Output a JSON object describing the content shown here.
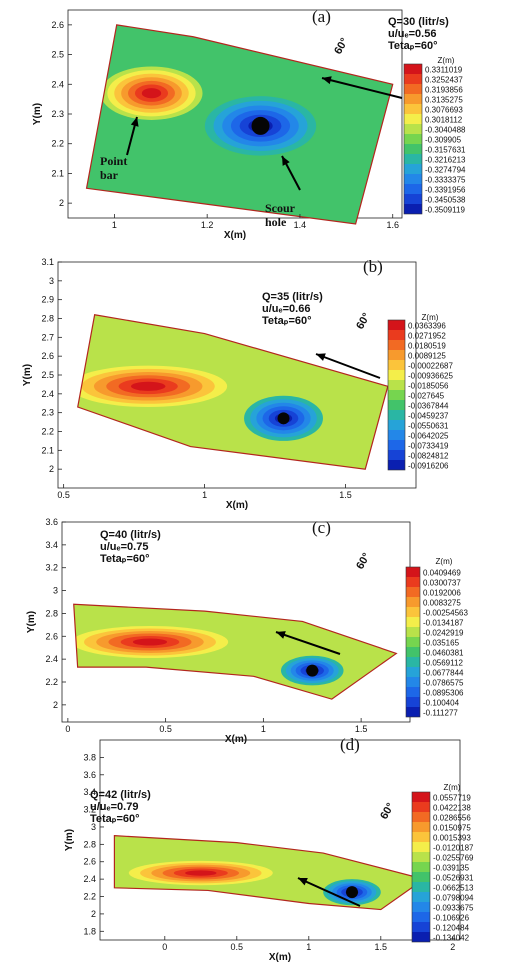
{
  "chart_data": [
    {
      "type": "heatmap",
      "panel_label": "(a)",
      "info": [
        "Q=30 (litr/s)",
        "u/uₑ=0.56",
        "Tetaₚ=60°"
      ],
      "xlabel": "X(m)",
      "ylabel": "Y(m)",
      "xlim": [
        0.9,
        1.62
      ],
      "ylim": [
        1.95,
        2.65
      ],
      "xticks": [
        "1",
        "1.2",
        "1.4",
        "1.6"
      ],
      "xtick_values": [
        1.0,
        1.2,
        1.4,
        1.6
      ],
      "yticks": [
        "2",
        "2.1",
        "2.2",
        "2.3",
        "2.4",
        "2.5",
        "2.6"
      ],
      "ytick_values": [
        2.0,
        2.1,
        2.2,
        2.3,
        2.4,
        2.5,
        2.6
      ],
      "angle_label": "60°",
      "legend_title": "Z(m)",
      "legend_values": [
        "0.3311019",
        "0.3252437",
        "0.3193856",
        "0.3135275",
        "0.3076693",
        "0.3018112",
        "-0.3040488",
        "-0.309905",
        "-0.3157631",
        "-0.3216213",
        "-0.3274794",
        "-0.3333375",
        "-0.3391956",
        "-0.3450538",
        "-0.3509119"
      ],
      "annotations": [
        {
          "text": "Point bar",
          "lines": [
            "Point",
            "bar"
          ]
        },
        {
          "text": "Scour hole",
          "lines": [
            "Scour",
            "hole"
          ]
        }
      ],
      "features": [
        {
          "kind": "bar",
          "x": 1.08,
          "y": 2.37,
          "rx": 0.11,
          "ry": 0.09
        },
        {
          "kind": "scour",
          "x": 1.315,
          "y": 2.26,
          "rx": 0.12,
          "ry": 0.1
        }
      ]
    },
    {
      "type": "heatmap",
      "panel_label": "(b)",
      "info": [
        "Q=35 (litr/s)",
        "u/uₑ=0.66",
        "Tetaₚ=60°"
      ],
      "xlabel": "X(m)",
      "ylabel": "Y(m)",
      "xlim": [
        0.48,
        1.75
      ],
      "ylim": [
        1.9,
        3.1
      ],
      "xticks": [
        "0.5",
        "1",
        "1.5"
      ],
      "xtick_values": [
        0.5,
        1.0,
        1.5
      ],
      "yticks": [
        "2",
        "2.1",
        "2.2",
        "2.3",
        "2.4",
        "2.5",
        "2.6",
        "2.7",
        "2.8",
        "2.9",
        "3",
        "3.1"
      ],
      "ytick_values": [
        2.0,
        2.1,
        2.2,
        2.3,
        2.4,
        2.5,
        2.6,
        2.7,
        2.8,
        2.9,
        3.0,
        3.1
      ],
      "angle_label": "60°",
      "legend_title": "Z(m)",
      "legend_values": [
        "0.0363396",
        "0.0271952",
        "0.0180519",
        "0.0089125",
        "-0.00022687",
        "-0.00936625",
        "-0.0185056",
        "-0.027645",
        "-0.0367844",
        "-0.0459237",
        "-0.0550631",
        "-0.0642025",
        "-0.0733419",
        "-0.0824812",
        "-0.0916206"
      ],
      "annotations": [],
      "features": [
        {
          "kind": "bar",
          "x": 0.8,
          "y": 2.44,
          "rx": 0.28,
          "ry": 0.11
        },
        {
          "kind": "scour",
          "x": 1.28,
          "y": 2.27,
          "rx": 0.14,
          "ry": 0.12
        }
      ]
    },
    {
      "type": "heatmap",
      "panel_label": "(c)",
      "info": [
        "Q=40 (litr/s)",
        "u/uₑ=0.75",
        "Tetaₚ=60°"
      ],
      "xlabel": "X(m)",
      "ylabel": "Y(m)",
      "xlim": [
        -0.03,
        1.75
      ],
      "ylim": [
        1.85,
        3.6
      ],
      "xticks": [
        "0",
        "0.5",
        "1",
        "1.5"
      ],
      "xtick_values": [
        0.0,
        0.5,
        1.0,
        1.5
      ],
      "yticks": [
        "2",
        "2.2",
        "2.4",
        "2.6",
        "2.8",
        "3",
        "3.2",
        "3.4",
        "3.6"
      ],
      "ytick_values": [
        2.0,
        2.2,
        2.4,
        2.6,
        2.8,
        3.0,
        3.2,
        3.4,
        3.6
      ],
      "angle_label": "60°",
      "legend_title": "Z(m)",
      "legend_values": [
        "0.0409469",
        "0.0300737",
        "0.0192006",
        "0.0083275",
        "-0.00254563",
        "-0.0134187",
        "-0.0242919",
        "-0.035165",
        "-0.0460381",
        "-0.0569112",
        "-0.0677844",
        "-0.0786575",
        "-0.0895306",
        "-0.100404",
        "-0.111277"
      ],
      "annotations": [],
      "features": [
        {
          "kind": "bar",
          "x": 0.42,
          "y": 2.55,
          "rx": 0.4,
          "ry": 0.14
        },
        {
          "kind": "scour",
          "x": 1.25,
          "y": 2.3,
          "rx": 0.16,
          "ry": 0.13
        }
      ]
    },
    {
      "type": "heatmap",
      "panel_label": "(d)",
      "info": [
        "Q=42 (litr/s)",
        "u/uₑ=0.79",
        "Tetaₚ=60°"
      ],
      "xlabel": "X(m)",
      "ylabel": "Y(m)",
      "xlim": [
        -0.45,
        2.05
      ],
      "ylim": [
        1.7,
        4.0
      ],
      "xticks": [
        "0",
        "0.5",
        "1",
        "1.5",
        "2"
      ],
      "xtick_values": [
        0.0,
        0.5,
        1.0,
        1.5,
        2.0
      ],
      "yticks": [
        "1.8",
        "2",
        "2.2",
        "2.4",
        "2.6",
        "2.8",
        "3",
        "3.2",
        "3.4",
        "3.6",
        "3.8"
      ],
      "ytick_values": [
        1.8,
        2.0,
        2.2,
        2.4,
        2.6,
        2.8,
        3.0,
        3.2,
        3.4,
        3.6,
        3.8
      ],
      "angle_label": "60°",
      "legend_title": "Z(m)",
      "legend_values": [
        "0.0557719",
        "0.0422138",
        "0.0286556",
        "0.0150975",
        "0.0015393",
        "-0.0120187",
        "-0.0255769",
        "-0.039135",
        "-0.0526931",
        "-0.0662513",
        "-0.0798094",
        "-0.0933675",
        "-0.106926",
        "-0.120484",
        "-0.134042"
      ],
      "annotations": [],
      "features": [
        {
          "kind": "bar",
          "x": 0.25,
          "y": 2.47,
          "rx": 0.5,
          "ry": 0.14
        },
        {
          "kind": "scour",
          "x": 1.3,
          "y": 2.25,
          "rx": 0.2,
          "ry": 0.15
        }
      ]
    }
  ]
}
